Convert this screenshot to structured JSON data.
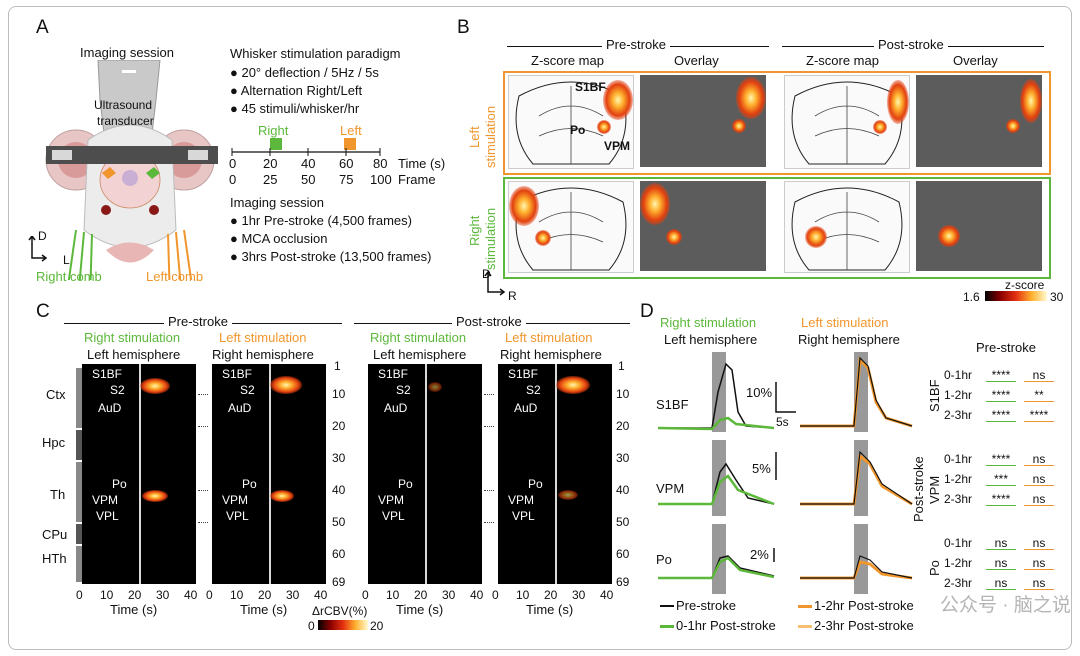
{
  "panels": {
    "A": "A",
    "B": "B",
    "C": "C",
    "D": "D"
  },
  "panelA": {
    "imaging_session_title": "Imaging session",
    "transducer": [
      "Ultrasound",
      "transducer"
    ],
    "axis_d": "D",
    "axis_l": "L",
    "right_comb": "Right comb",
    "left_comb": "Left comb",
    "paradigm_title": "Whisker stimulation paradigm",
    "paradigm_items": [
      "20° deflection / 5Hz / 5s",
      "Alternation Right/Left",
      "45 stimuli/whisker/hr"
    ],
    "timeline": {
      "right": "Right",
      "left": "Left",
      "time_ticks": [
        "0",
        "20",
        "40",
        "60",
        "80"
      ],
      "time_label": "Time (s)",
      "frame_ticks": [
        "0",
        "25",
        "50",
        "75",
        "100"
      ],
      "frame_label": "Frame"
    },
    "session_title": "Imaging session",
    "session_items": [
      "1hr Pre-stroke (4,500 frames)",
      "MCA occlusion",
      "3hrs Post-stroke (13,500 frames)"
    ]
  },
  "panelB": {
    "pre": "Pre-stroke",
    "post": "Post-stroke",
    "zscore_map": "Z-score map",
    "overlay": "Overlay",
    "left_stim": [
      "Left",
      "stimulation"
    ],
    "right_stim": [
      "Right",
      "stimulation"
    ],
    "labels": {
      "s1bf": "S1BF",
      "po": "Po",
      "vpm": "VPM"
    },
    "axis_d": "D",
    "axis_r": "R",
    "colorbar": {
      "title": "z-score",
      "min": "1.6",
      "max": "30"
    }
  },
  "panelC": {
    "pre": "Pre-stroke",
    "post": "Post-stroke",
    "right_stim": "Right stimulation",
    "left_stim": "Left stimulation",
    "left_hemi": "Left hemisphere",
    "right_hemi": "Right hemisphere",
    "regions": [
      "Ctx",
      "Hpc",
      "Th",
      "CPu",
      "HTh"
    ],
    "inner_labels": [
      "S1BF",
      "S2",
      "AuD",
      "Po",
      "VPM",
      "VPL"
    ],
    "row_ticks": [
      "1",
      "10",
      "20",
      "30",
      "40",
      "50",
      "60",
      "69"
    ],
    "x_ticks": [
      "0",
      "10",
      "20",
      "30",
      "40"
    ],
    "x_label": "Time (s)",
    "colorbar": {
      "title": "ΔrCBV(%)",
      "min": "0",
      "max": "20"
    }
  },
  "panelD": {
    "right_stim": "Right stimulation",
    "left_stim": "Left stimulation",
    "left_hemi": "Left hemisphere",
    "right_hemi": "Right hemisphere",
    "traces": [
      "S1BF",
      "VPM",
      "Po"
    ],
    "scale_labels": [
      "10%",
      "5s",
      "5%",
      "2%"
    ],
    "legend": [
      "Pre-stroke",
      "0-1hr Post-stroke",
      "1-2hr Post-stroke",
      "2-3hr Post-stroke"
    ],
    "stats_title": "Pre-stroke",
    "stats_group_labels": [
      "S1BF",
      "Post-stroke",
      "VPM",
      "Po"
    ],
    "stats": [
      {
        "region": "S1BF",
        "rows": [
          {
            "t": "0-1hr",
            "a": "****",
            "b": "ns"
          },
          {
            "t": "1-2hr",
            "a": "****",
            "b": "**"
          },
          {
            "t": "2-3hr",
            "a": "****",
            "b": "****"
          }
        ]
      },
      {
        "region": "VPM",
        "rows": [
          {
            "t": "0-1hr",
            "a": "****",
            "b": "ns"
          },
          {
            "t": "1-2hr",
            "a": "***",
            "b": "ns"
          },
          {
            "t": "2-3hr",
            "a": "****",
            "b": "ns"
          }
        ]
      },
      {
        "region": "Po",
        "rows": [
          {
            "t": "0-1hr",
            "a": "ns",
            "b": "ns"
          },
          {
            "t": "1-2hr",
            "a": "ns",
            "b": "ns"
          },
          {
            "t": "2-3hr",
            "a": "ns",
            "b": "ns"
          }
        ]
      }
    ],
    "watermark": "公众号 · 脑之说"
  },
  "colors": {
    "green": "#5cb83a",
    "orange": "#f0962c",
    "pre": "#111111"
  }
}
